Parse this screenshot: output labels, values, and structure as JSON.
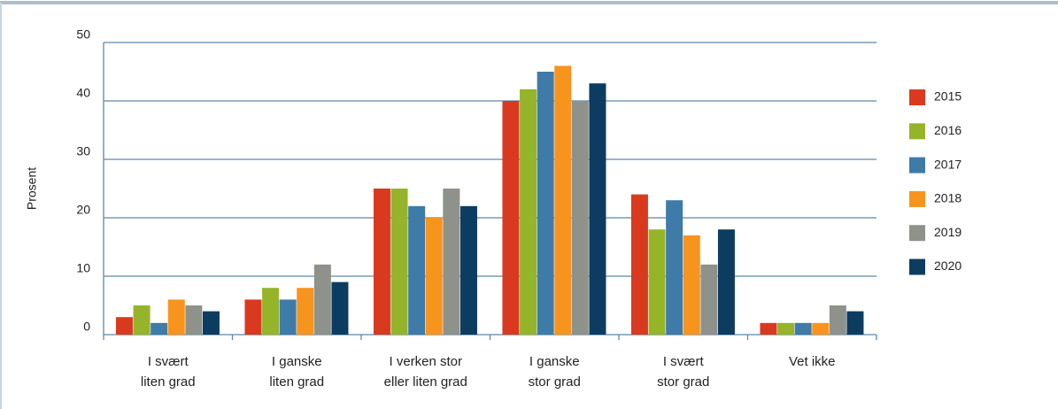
{
  "chart_data": {
    "type": "bar",
    "y_label": "Prosent",
    "categories": [
      "I svært\nliten grad",
      "I ganske\nliten grad",
      "I verken stor\neller liten grad",
      "I ganske\nstor grad",
      "I svært\nstor grad",
      "Vet ikke"
    ],
    "series": [
      {
        "name": "2015",
        "color": "#d93a1f",
        "values": [
          3,
          6,
          25,
          40,
          24,
          2
        ]
      },
      {
        "name": "2016",
        "color": "#95b42a",
        "values": [
          5,
          8,
          25,
          42,
          18,
          2
        ]
      },
      {
        "name": "2017",
        "color": "#3e7ba8",
        "values": [
          2,
          6,
          22,
          45,
          23,
          2
        ]
      },
      {
        "name": "2018",
        "color": "#f7941d",
        "values": [
          6,
          8,
          20,
          46,
          17,
          2
        ]
      },
      {
        "name": "2019",
        "color": "#8e928a",
        "values": [
          5,
          12,
          25,
          40,
          12,
          5
        ]
      },
      {
        "name": "2020",
        "color": "#0d3c61",
        "values": [
          4,
          9,
          22,
          43,
          18,
          4
        ]
      }
    ],
    "ylim": [
      0,
      50
    ],
    "yticks": [
      0,
      10,
      20,
      30,
      40,
      50
    ],
    "grid": true,
    "legend": "right"
  }
}
